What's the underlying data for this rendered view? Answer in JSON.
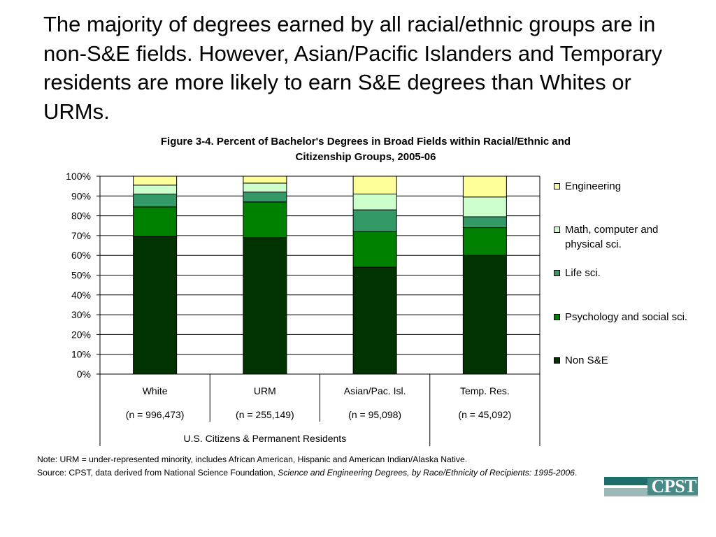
{
  "headline": "The majority of degrees earned by all racial/ethnic groups are in non-S&E fields. However, Asian/Pacific Islanders and Temporary residents are more likely to earn S&E degrees than Whites or URMs.",
  "chart_data": {
    "type": "bar",
    "stacked": true,
    "title_line1": "Figure 3-4. Percent of Bachelor's Degrees in Broad Fields within Racial/Ethnic and",
    "title_line2": "Citizenship Groups, 2005-06",
    "categories": [
      "White",
      "URM",
      "Asian/Pac. Isl.",
      "Temp. Res."
    ],
    "category_counts": [
      "(n = 996,473)",
      "(n = 255,149)",
      "(n = 95,098)",
      "(n = 45,092)"
    ],
    "group_label": "U.S. Citizens & Permanent Residents",
    "ylim": [
      0,
      100
    ],
    "yticks": [
      "0%",
      "10%",
      "20%",
      "30%",
      "40%",
      "50%",
      "60%",
      "70%",
      "80%",
      "90%",
      "100%"
    ],
    "grid": true,
    "legend_position": "right",
    "series": [
      {
        "name": "Non S&E",
        "color": "#003300",
        "values": [
          69.5,
          69,
          54,
          60
        ]
      },
      {
        "name": "Psychology and social sci.",
        "color": "#008000",
        "values": [
          15,
          18,
          18,
          14
        ]
      },
      {
        "name": "Life sci.",
        "color": "#339966",
        "values": [
          6.5,
          5,
          11,
          5.5
        ]
      },
      {
        "name": "Math, computer and physical sci.",
        "color": "#ccffcc",
        "values": [
          4.5,
          4.5,
          8,
          10
        ]
      },
      {
        "name": "Engineering",
        "color": "#ffff99",
        "values": [
          4.5,
          3.5,
          9,
          10.5
        ]
      }
    ]
  },
  "legend": {
    "items": [
      {
        "label": "Engineering",
        "color": "#ffff99"
      },
      {
        "label": "Math, computer and physical sci.",
        "color": "#ccffcc"
      },
      {
        "label": "Life sci.",
        "color": "#339966"
      },
      {
        "label": "Psychology and social sci.",
        "color": "#008000"
      },
      {
        "label": "Non S&E",
        "color": "#003300"
      }
    ]
  },
  "note": {
    "line1": "Note: URM = under-represented minority, includes African American, Hispanic and American Indian/Alaska Native.",
    "source_prefix": "Source: CPST, data derived from National Science Foundation, ",
    "source_title": "Science and Engineering Degrees, by Race/Ethnicity of Recipients: 1995-2006",
    "source_suffix": "."
  },
  "logo": {
    "text": "CPST"
  }
}
